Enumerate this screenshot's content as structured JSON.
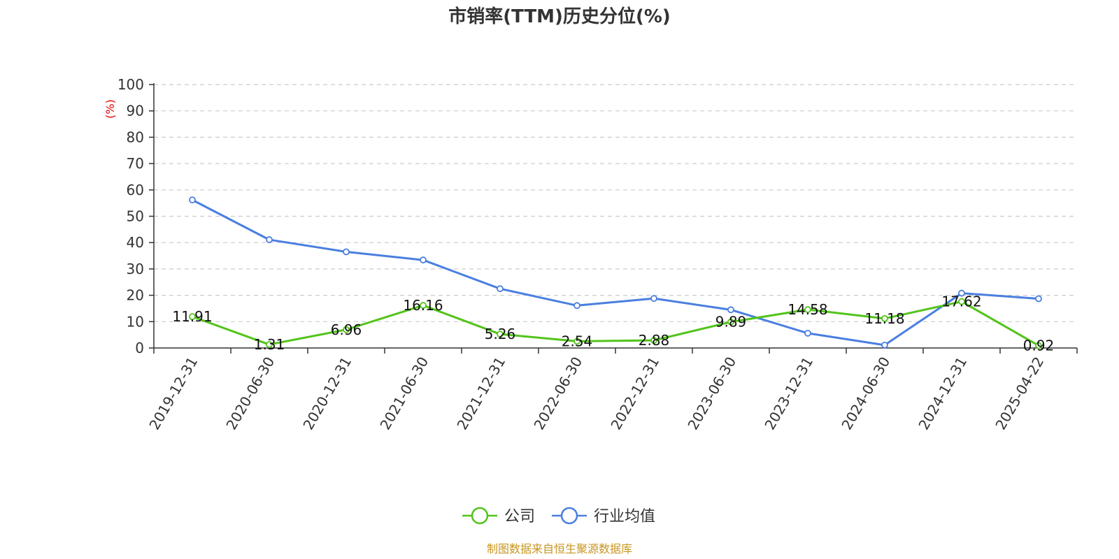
{
  "chart_data": {
    "type": "line",
    "title": "市销率(TTM)历史分位(%)",
    "ylabel": "(%)",
    "xlabel": "",
    "ylim": [
      0,
      100
    ],
    "yticks": [
      0,
      10,
      20,
      30,
      40,
      50,
      60,
      70,
      80,
      90,
      100
    ],
    "grid": true,
    "legend_position": "bottom",
    "categories": [
      "2019-12-31",
      "2020-06-30",
      "2020-12-31",
      "2021-06-30",
      "2021-12-31",
      "2022-06-30",
      "2022-12-31",
      "2023-06-30",
      "2023-12-31",
      "2024-06-30",
      "2024-12-31",
      "2025-04-22"
    ],
    "series": [
      {
        "name": "公司",
        "color": "#52c41a",
        "show_labels": true,
        "values": [
          11.91,
          1.31,
          6.96,
          16.16,
          5.26,
          2.54,
          2.88,
          9.89,
          14.58,
          11.18,
          17.62,
          0.92
        ],
        "labels": [
          "11.91",
          "1.31",
          "6.96",
          "16.16",
          "5.26",
          "2.54",
          "2.88",
          "9.89",
          "14.58",
          "11.18",
          "17.62",
          "0.92"
        ]
      },
      {
        "name": "行业均值",
        "color": "#4a7fe0",
        "show_labels": false,
        "values": [
          56.2,
          41.1,
          36.5,
          33.4,
          22.5,
          16.1,
          18.8,
          14.5,
          5.6,
          1.1,
          20.8,
          18.7
        ]
      }
    ],
    "source": "制图数据来自恒生聚源数据库"
  }
}
